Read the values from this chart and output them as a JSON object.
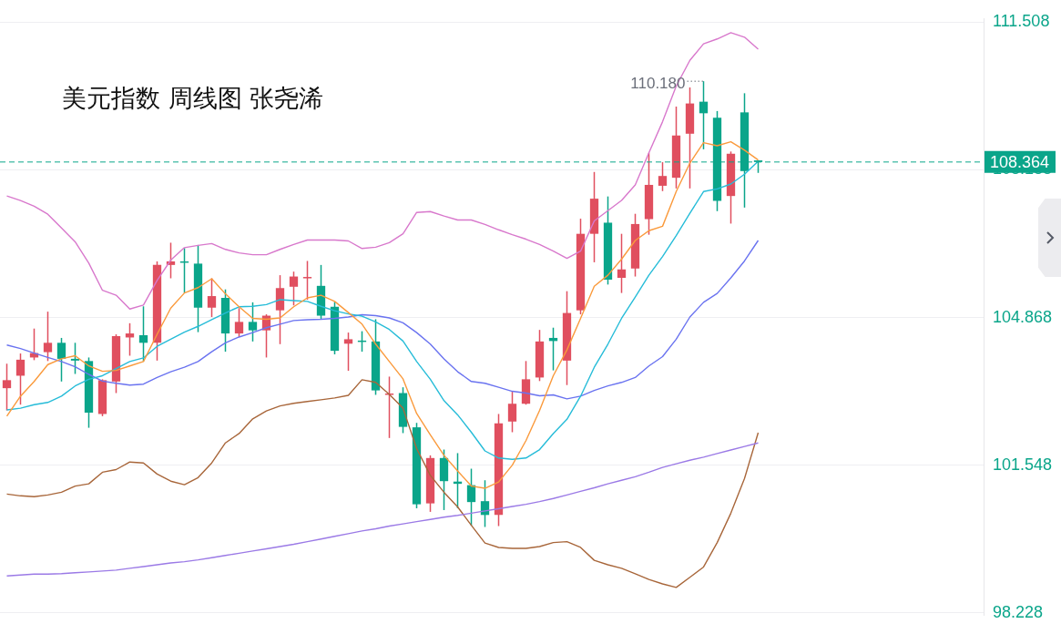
{
  "chart_data": {
    "type": "candlestick",
    "title": "美元指数 周线图 张尧浠",
    "categories": [
      null,
      null,
      null,
      null,
      null,
      null,
      null,
      null,
      null,
      null,
      null,
      null,
      null,
      null,
      null,
      null,
      null,
      null,
      null,
      null,
      null,
      null,
      null,
      null,
      null,
      null,
      null,
      null,
      null,
      null,
      null,
      null,
      null,
      null,
      null,
      null,
      null,
      null,
      null,
      null,
      null,
      null,
      null,
      null,
      null,
      null,
      null,
      null,
      null,
      null,
      null,
      null,
      null,
      null,
      null,
      null,
      null,
      null,
      null,
      null,
      null,
      null,
      null,
      null,
      null,
      null,
      null,
      null,
      null,
      null,
      null,
      null
    ],
    "ohlc": [
      [
        103.28,
        103.83,
        102.78,
        103.46
      ],
      [
        103.56,
        104.06,
        102.91,
        103.92
      ],
      [
        103.97,
        104.62,
        103.91,
        104.07
      ],
      [
        104.09,
        105.0,
        103.89,
        104.3
      ],
      [
        104.3,
        104.41,
        103.43,
        103.94
      ],
      [
        103.94,
        104.3,
        103.6,
        103.9
      ],
      [
        103.89,
        103.97,
        102.39,
        102.73
      ],
      [
        102.7,
        103.48,
        102.65,
        103.46
      ],
      [
        103.43,
        104.49,
        103.17,
        104.45
      ],
      [
        104.42,
        104.74,
        104.01,
        104.51
      ],
      [
        104.47,
        105.12,
        103.88,
        104.3
      ],
      [
        104.3,
        106.13,
        103.9,
        106.05
      ],
      [
        106.05,
        106.55,
        105.75,
        106.13
      ],
      [
        106.13,
        106.43,
        105.42,
        106.12
      ],
      [
        106.08,
        106.5,
        104.54,
        105.09
      ],
      [
        105.09,
        105.75,
        104.88,
        105.35
      ],
      [
        105.31,
        105.5,
        104.1,
        104.51
      ],
      [
        104.51,
        105.08,
        104.43,
        104.77
      ],
      [
        104.77,
        105.21,
        104.33,
        104.58
      ],
      [
        104.58,
        104.94,
        103.97,
        104.91
      ],
      [
        105.03,
        105.82,
        104.27,
        105.53
      ],
      [
        105.56,
        105.9,
        105.14,
        105.79
      ],
      [
        105.76,
        106.14,
        105.27,
        105.78
      ],
      [
        105.58,
        106.05,
        104.84,
        104.91
      ],
      [
        105.11,
        105.22,
        104.04,
        104.12
      ],
      [
        104.28,
        104.53,
        103.67,
        104.38
      ],
      [
        104.35,
        104.56,
        104.1,
        104.34
      ],
      [
        104.33,
        104.83,
        103.13,
        103.23
      ],
      [
        103.15,
        103.54,
        102.16,
        103.16
      ],
      [
        103.17,
        103.3,
        102.27,
        102.41
      ],
      [
        102.4,
        102.5,
        100.58,
        100.67
      ],
      [
        100.69,
        101.77,
        100.5,
        101.71
      ],
      [
        101.71,
        101.9,
        100.54,
        101.19
      ],
      [
        101.18,
        101.82,
        100.58,
        101.13
      ],
      [
        101.1,
        101.47,
        100.19,
        100.72
      ],
      [
        100.74,
        101.21,
        100.16,
        100.43
      ],
      [
        100.43,
        102.7,
        100.18,
        102.49
      ],
      [
        102.53,
        103.2,
        102.29,
        102.93
      ],
      [
        102.93,
        103.89,
        102.91,
        103.48
      ],
      [
        103.52,
        104.59,
        103.44,
        104.33
      ],
      [
        104.41,
        104.64,
        103.68,
        104.34
      ],
      [
        103.9,
        105.46,
        103.35,
        104.97
      ],
      [
        105.03,
        107.09,
        104.94,
        106.75
      ],
      [
        106.75,
        108.14,
        106.11,
        107.54
      ],
      [
        107.0,
        107.59,
        105.61,
        105.72
      ],
      [
        105.76,
        106.75,
        105.42,
        105.95
      ],
      [
        105.97,
        107.2,
        105.79,
        106.97
      ],
      [
        107.08,
        108.57,
        106.73,
        107.85
      ],
      [
        107.83,
        108.36,
        107.71,
        108.05
      ],
      [
        108.01,
        109.61,
        107.77,
        108.96
      ],
      [
        109.0,
        110.04,
        107.77,
        109.68
      ],
      [
        109.72,
        110.18,
        108.65,
        109.46
      ],
      [
        109.36,
        109.51,
        107.26,
        107.49
      ],
      [
        107.6,
        108.6,
        106.98,
        108.55
      ],
      [
        109.48,
        109.91,
        107.34,
        108.16
      ],
      [
        108.4,
        108.4,
        108.12,
        108.364
      ],
      null,
      null,
      null,
      null,
      null,
      null,
      null,
      null,
      null,
      null,
      null,
      null,
      null,
      null,
      null,
      null
    ],
    "colors": [
      "#e04f5f",
      "#e04f5f",
      "#e04f5f",
      "#e04f5f",
      "#0aa58a",
      "#0aa58a",
      "#0aa58a",
      "#e04f5f",
      "#e04f5f",
      "#e04f5f",
      "#0aa58a",
      "#e04f5f",
      "#e04f5f",
      "#0aa58a",
      "#0aa58a",
      "#e04f5f",
      "#0aa58a",
      "#e04f5f",
      "#0aa58a",
      "#e04f5f",
      "#e04f5f",
      "#e04f5f",
      "#e04f5f",
      "#0aa58a",
      "#0aa58a",
      "#e04f5f",
      "#0aa58a",
      "#0aa58a",
      "#e04f5f",
      "#0aa58a",
      "#0aa58a",
      "#e04f5f",
      "#0aa58a",
      "#0aa58a",
      "#0aa58a",
      "#0aa58a",
      "#e04f5f",
      "#e04f5f",
      "#e04f5f",
      "#e04f5f",
      "#0aa58a",
      "#e04f5f",
      "#e04f5f",
      "#e04f5f",
      "#0aa58a",
      "#e04f5f",
      "#e04f5f",
      "#e04f5f",
      "#e04f5f",
      "#e04f5f",
      "#e04f5f",
      "#0aa58a",
      "#0aa58a",
      "#e04f5f",
      "#0aa58a",
      "#0aa58a",
      null,
      null,
      null,
      null,
      null,
      null,
      null,
      null,
      null,
      null,
      null,
      null,
      null,
      null,
      null,
      null
    ],
    "series": [
      {
        "type": "line",
        "color": "#fa9a3c",
        "values": [
          102.65,
          103.1,
          103.43,
          103.81,
          103.94,
          104.01,
          103.78,
          103.66,
          103.68,
          103.78,
          103.88,
          104.49,
          105.08,
          105.42,
          105.54,
          105.74,
          105.4,
          105.11,
          104.85,
          104.83,
          104.86,
          105.11,
          105.31,
          105.37,
          105.23,
          104.98,
          104.72,
          104.27,
          103.88,
          103.49,
          102.71,
          102.23,
          101.77,
          101.42,
          101.08,
          101.03,
          101.17,
          101.55,
          102.1,
          102.78,
          103.56,
          104.14,
          104.85,
          105.57,
          105.82,
          106.18,
          106.6,
          106.82,
          106.92,
          107.7,
          108.34,
          108.8,
          108.73,
          108.82,
          108.63,
          108.41,
          null,
          null,
          null,
          null,
          null,
          null,
          null,
          null,
          null,
          null,
          null,
          null,
          null,
          null,
          null,
          null
        ]
      },
      {
        "type": "line",
        "color": "#26bcd8",
        "values": [
          102.79,
          102.83,
          102.91,
          102.96,
          103.1,
          103.33,
          103.48,
          103.56,
          103.72,
          103.88,
          103.96,
          104.22,
          104.38,
          104.54,
          104.67,
          104.82,
          104.97,
          105.11,
          105.12,
          105.16,
          105.27,
          105.25,
          105.23,
          105.12,
          105.02,
          104.95,
          104.9,
          104.77,
          104.6,
          104.34,
          103.88,
          103.48,
          103.0,
          102.68,
          102.29,
          101.87,
          101.71,
          101.68,
          101.71,
          101.9,
          102.26,
          102.58,
          103.1,
          103.75,
          104.27,
          104.85,
          105.33,
          105.82,
          106.24,
          106.71,
          107.21,
          107.7,
          107.76,
          107.87,
          108.09,
          108.38,
          null,
          null,
          null,
          null,
          null,
          null,
          null,
          null,
          null,
          null,
          null,
          null,
          null,
          null,
          null,
          null
        ]
      },
      {
        "type": "line",
        "color": "#6a73f0",
        "values": [
          104.25,
          104.17,
          104.07,
          103.97,
          103.88,
          103.76,
          103.59,
          103.44,
          103.39,
          103.35,
          103.37,
          103.52,
          103.65,
          103.75,
          103.88,
          104.1,
          104.3,
          104.43,
          104.53,
          104.64,
          104.72,
          104.8,
          104.82,
          104.83,
          104.85,
          104.88,
          104.93,
          104.91,
          104.86,
          104.75,
          104.53,
          104.27,
          103.94,
          103.65,
          103.43,
          103.39,
          103.3,
          103.21,
          103.17,
          103.11,
          103.13,
          103.04,
          103.1,
          103.23,
          103.33,
          103.41,
          103.52,
          103.78,
          103.99,
          104.38,
          104.88,
          105.21,
          105.41,
          105.76,
          106.14,
          106.6,
          null,
          null,
          null,
          null,
          null,
          null,
          null,
          null,
          null,
          null,
          null,
          null,
          null,
          null,
          null,
          null
        ]
      },
      {
        "type": "line",
        "color": "#9b7ae6",
        "values": [
          99.06,
          99.08,
          99.1,
          99.1,
          99.11,
          99.13,
          99.15,
          99.17,
          99.19,
          99.23,
          99.27,
          99.31,
          99.35,
          99.38,
          99.42,
          99.47,
          99.52,
          99.57,
          99.62,
          99.67,
          99.72,
          99.77,
          99.83,
          99.89,
          99.95,
          100.01,
          100.07,
          100.12,
          100.18,
          100.23,
          100.28,
          100.33,
          100.38,
          100.42,
          100.47,
          100.52,
          100.57,
          100.62,
          100.67,
          100.73,
          100.8,
          100.88,
          100.96,
          101.04,
          101.13,
          101.21,
          101.29,
          101.39,
          101.5,
          101.58,
          101.66,
          101.73,
          101.81,
          101.89,
          101.97,
          102.05,
          null,
          null,
          null,
          null,
          null,
          null,
          null,
          null,
          null,
          null,
          null,
          null,
          null,
          null,
          null,
          null
        ]
      },
      {
        "type": "line",
        "color": "#d878cc",
        "values": [
          107.6,
          107.5,
          107.37,
          107.19,
          106.88,
          106.57,
          106.09,
          105.48,
          105.37,
          105.06,
          105.15,
          105.7,
          106.16,
          106.44,
          106.49,
          106.53,
          106.4,
          106.32,
          106.28,
          106.28,
          106.4,
          106.51,
          106.61,
          106.61,
          106.61,
          106.59,
          106.42,
          106.45,
          106.55,
          106.75,
          107.23,
          107.25,
          107.15,
          107.06,
          107.06,
          106.96,
          106.84,
          106.73,
          106.63,
          106.51,
          106.36,
          106.2,
          106.36,
          107.04,
          107.27,
          107.5,
          107.85,
          108.57,
          109.27,
          110.07,
          110.65,
          111.02,
          111.13,
          111.27,
          111.17,
          110.9,
          null,
          null,
          null,
          null,
          null,
          null,
          null,
          null,
          null,
          null,
          null,
          null,
          null,
          null,
          null,
          null
        ]
      },
      {
        "type": "line",
        "color": "#a8663a",
        "values": [
          100.9,
          100.86,
          100.84,
          100.88,
          100.94,
          101.08,
          101.13,
          101.39,
          101.45,
          101.62,
          101.6,
          101.35,
          101.19,
          101.11,
          101.27,
          101.6,
          102.05,
          102.26,
          102.59,
          102.77,
          102.88,
          102.94,
          102.98,
          103.02,
          103.06,
          103.12,
          103.47,
          103.41,
          103.14,
          102.83,
          101.92,
          101.32,
          100.94,
          100.61,
          100.2,
          99.8,
          99.7,
          99.68,
          99.68,
          99.72,
          99.81,
          99.83,
          99.7,
          99.41,
          99.31,
          99.23,
          99.11,
          98.98,
          98.88,
          98.8,
          99.03,
          99.26,
          99.81,
          100.47,
          101.25,
          102.28,
          null,
          null,
          null,
          null,
          null,
          null,
          null,
          null,
          null,
          null,
          null,
          null,
          null,
          null,
          null,
          null
        ]
      }
    ],
    "ylim": [
      98.18,
      111.58
    ],
    "yticks": [
      98.228,
      101.548,
      104.868,
      108.188,
      111.508
    ],
    "ref_lines": [
      {
        "axis": "y",
        "value": 108.364,
        "label": "108.364",
        "color": "#0aa58a",
        "line_style": "dashed"
      }
    ],
    "annotations": [
      "110.180"
    ],
    "grid": "y",
    "legend": false,
    "marker": "none",
    "line_style": "solid"
  }
}
